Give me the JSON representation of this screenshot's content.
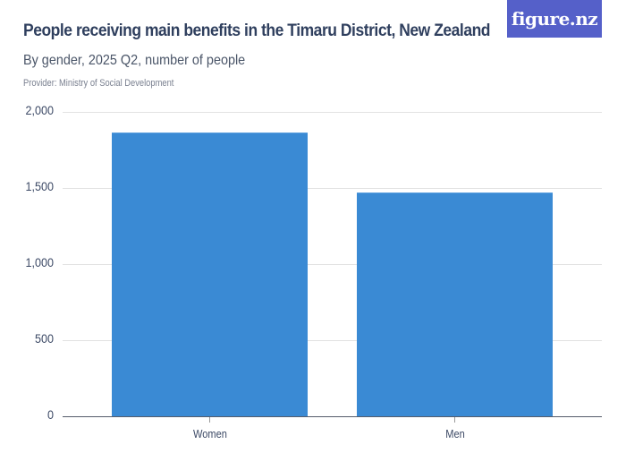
{
  "header": {
    "title": "People receiving main benefits in the Timaru District, New Zealand",
    "subtitle": "By gender, 2025 Q2, number of people",
    "provider": "Provider: Ministry of Social Development",
    "logo": "figure.nz"
  },
  "colors": {
    "bar": "#3a8ad4",
    "logo_bg": "#5560c9",
    "title": "#2f3f5e"
  },
  "axis": {
    "y_ticks": [
      "2,000",
      "1,500",
      "1,000",
      "500",
      "0"
    ],
    "x_labels": [
      "Women",
      "Men"
    ]
  },
  "chart_data": {
    "type": "bar",
    "title": "People receiving main benefits in the Timaru District, New Zealand",
    "subtitle": "By gender, 2025 Q2, number of people",
    "categories": [
      "Women",
      "Men"
    ],
    "values": [
      1865,
      1470
    ],
    "xlabel": "",
    "ylabel": "",
    "ylim": [
      0,
      2000
    ],
    "y_ticks": [
      0,
      500,
      1000,
      1500,
      2000
    ],
    "grid": true,
    "legend": null,
    "source": "Provider: Ministry of Social Development"
  }
}
